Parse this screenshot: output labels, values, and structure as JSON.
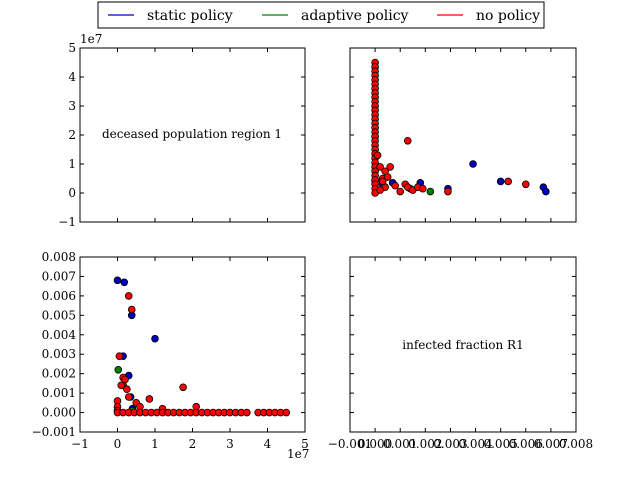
{
  "legend": {
    "placement": "top-center",
    "entries": [
      {
        "label": "static policy",
        "color": "#0000bf"
      },
      {
        "label": "adaptive policy",
        "color": "#007f00"
      },
      {
        "label": "no policy",
        "color": "#ff0000"
      }
    ]
  },
  "chart_data": [
    {
      "type": "text",
      "panel": "top-left",
      "annotation": "deceased population region 1",
      "ylim": [
        -1,
        5
      ],
      "yticks": [
        "−1",
        "0",
        "1",
        "2",
        "3",
        "4",
        "5"
      ],
      "y_offset_label": "1e7",
      "grid": false
    },
    {
      "type": "scatter",
      "panel": "top-right",
      "xlim": [
        -0.001,
        0.008
      ],
      "ylim": [
        -1,
        5
      ],
      "y_units": "1e7",
      "grid": false,
      "marker_edge": "#000000",
      "series": [
        {
          "name": "static policy",
          "color": "#0000bf",
          "points": [
            [
              0.0039,
              1.0
            ],
            [
              0.005,
              0.4
            ],
            [
              0.0067,
              0.2
            ],
            [
              0.0068,
              0.05
            ],
            [
              0.0029,
              0.15
            ],
            [
              0.0018,
              0.35
            ],
            [
              0.0007,
              0.35
            ],
            [
              0.0003,
              0.3
            ],
            [
              0.0,
              0.45
            ]
          ]
        },
        {
          "name": "adaptive policy",
          "color": "#007f00",
          "points": [
            [
              0.0022,
              0.05
            ],
            [
              0.0014,
              0.15
            ],
            [
              0.0,
              0.4
            ]
          ]
        },
        {
          "name": "no policy",
          "color": "#ff0000",
          "points": [
            [
              0.0,
              4.5
            ],
            [
              0.0,
              4.35
            ],
            [
              0.0,
              4.2
            ],
            [
              0.0,
              4.05
            ],
            [
              0.0,
              3.9
            ],
            [
              0.0,
              3.75
            ],
            [
              0.0,
              3.6
            ],
            [
              0.0,
              3.45
            ],
            [
              0.0,
              3.3
            ],
            [
              0.0,
              3.15
            ],
            [
              0.0,
              3.0
            ],
            [
              0.0,
              2.85
            ],
            [
              0.0,
              2.7
            ],
            [
              0.0,
              2.55
            ],
            [
              0.0,
              2.4
            ],
            [
              0.0,
              2.25
            ],
            [
              0.0,
              2.1
            ],
            [
              0.0,
              1.95
            ],
            [
              0.0,
              1.8
            ],
            [
              0.0,
              1.65
            ],
            [
              0.0,
              1.5
            ],
            [
              0.0,
              1.35
            ],
            [
              0.0,
              1.2
            ],
            [
              0.0,
              1.05
            ],
            [
              0.0,
              0.9
            ],
            [
              0.0,
              0.75
            ],
            [
              0.0,
              0.6
            ],
            [
              0.0,
              0.45
            ],
            [
              0.0,
              0.3
            ],
            [
              0.0,
              0.15
            ],
            [
              0.0,
              0.0
            ],
            [
              0.0001,
              1.3
            ],
            [
              0.0002,
              0.9
            ],
            [
              0.0003,
              0.5
            ],
            [
              0.0004,
              0.2
            ],
            [
              0.0002,
              0.1
            ],
            [
              0.0013,
              1.8
            ],
            [
              0.0006,
              0.9
            ],
            [
              0.0004,
              0.75
            ],
            [
              0.0005,
              0.55
            ],
            [
              0.0003,
              0.4
            ],
            [
              0.0012,
              0.3
            ],
            [
              0.0013,
              0.2
            ],
            [
              0.0015,
              0.1
            ],
            [
              0.0017,
              0.2
            ],
            [
              0.0019,
              0.15
            ],
            [
              0.0029,
              0.05
            ],
            [
              0.0053,
              0.4
            ],
            [
              0.006,
              0.3
            ],
            [
              0.0008,
              0.25
            ],
            [
              0.001,
              0.05
            ]
          ]
        }
      ]
    },
    {
      "type": "scatter",
      "panel": "bottom-left",
      "xlim": [
        -1,
        5
      ],
      "x_units": "1e7",
      "ylim": [
        -0.001,
        0.008
      ],
      "xticks": [
        "−1",
        "0",
        "1",
        "2",
        "3",
        "4",
        "5"
      ],
      "yticks": [
        "−0.001",
        "0.000",
        "0.001",
        "0.002",
        "0.003",
        "0.004",
        "0.005",
        "0.006",
        "0.007",
        "0.008"
      ],
      "x_offset_label": "1e7",
      "grid": false,
      "marker_edge": "#000000",
      "series": [
        {
          "name": "static policy",
          "color": "#0000bf",
          "points": [
            [
              0.0,
              0.0068
            ],
            [
              0.18,
              0.0067
            ],
            [
              0.38,
              0.005
            ],
            [
              1.0,
              0.0038
            ],
            [
              0.15,
              0.0029
            ],
            [
              0.3,
              0.0019
            ],
            [
              0.35,
              0.0008
            ],
            [
              0.4,
              0.0002
            ]
          ]
        },
        {
          "name": "adaptive policy",
          "color": "#007f00",
          "points": [
            [
              0.02,
              0.0022
            ],
            [
              0.15,
              0.0014
            ],
            [
              0.4,
              0.0001
            ]
          ]
        },
        {
          "name": "no policy",
          "color": "#ff0000",
          "points": [
            [
              0.3,
              0.006
            ],
            [
              0.38,
              0.0053
            ],
            [
              0.05,
              0.0029
            ],
            [
              0.15,
              0.0018
            ],
            [
              0.2,
              0.0017
            ],
            [
              0.1,
              0.0014
            ],
            [
              0.25,
              0.0012
            ],
            [
              0.3,
              0.0008
            ],
            [
              0.5,
              0.0005
            ],
            [
              0.85,
              0.0007
            ],
            [
              1.75,
              0.0013
            ],
            [
              1.2,
              0.0002
            ],
            [
              2.1,
              0.0003
            ],
            [
              0.6,
              0.0003
            ],
            [
              0.0,
              0.0006
            ],
            [
              0.0,
              0.0003
            ],
            [
              0.0,
              0.0001
            ],
            [
              0.0,
              0.0
            ],
            [
              0.15,
              0.0
            ],
            [
              0.3,
              0.0
            ],
            [
              0.45,
              0.0
            ],
            [
              0.6,
              0.0
            ],
            [
              0.75,
              0.0
            ],
            [
              0.9,
              0.0
            ],
            [
              1.05,
              0.0
            ],
            [
              1.2,
              0.0
            ],
            [
              1.35,
              0.0
            ],
            [
              1.5,
              0.0
            ],
            [
              1.65,
              0.0
            ],
            [
              1.8,
              0.0
            ],
            [
              1.95,
              0.0
            ],
            [
              2.1,
              0.0
            ],
            [
              2.25,
              0.0
            ],
            [
              2.4,
              0.0
            ],
            [
              2.55,
              0.0
            ],
            [
              2.7,
              0.0
            ],
            [
              2.85,
              0.0
            ],
            [
              3.0,
              0.0
            ],
            [
              3.15,
              0.0
            ],
            [
              3.3,
              0.0
            ],
            [
              3.45,
              0.0
            ],
            [
              3.75,
              0.0
            ],
            [
              3.9,
              0.0
            ],
            [
              4.05,
              0.0
            ],
            [
              4.2,
              0.0
            ],
            [
              4.35,
              0.0
            ],
            [
              4.5,
              0.0
            ]
          ]
        }
      ]
    },
    {
      "type": "text",
      "panel": "bottom-right",
      "annotation": "infected fraction R1",
      "xlim": [
        -0.001,
        0.008
      ],
      "xticks": [
        "−0.001",
        "0.000",
        "0.001",
        "0.002",
        "0.003",
        "0.004",
        "0.005",
        "0.006",
        "0.007",
        "0.008"
      ],
      "grid": false
    }
  ]
}
